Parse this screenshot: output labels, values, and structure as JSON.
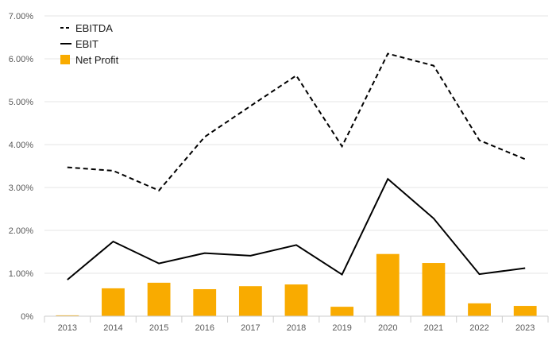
{
  "chart_data": {
    "type": "bar",
    "categories": [
      "2013",
      "2014",
      "2015",
      "2016",
      "2017",
      "2018",
      "2019",
      "2020",
      "2021",
      "2022",
      "2023"
    ],
    "ylim": [
      0,
      7
    ],
    "ytick_values": [
      0,
      1,
      2,
      3,
      4,
      5,
      6,
      7
    ],
    "ytick_labels": [
      "0%",
      "1.00%",
      "2.00%",
      "3.00%",
      "4.00%",
      "5.00%",
      "6.00%",
      "7.00%"
    ],
    "grid": true,
    "legend_position": "top-left",
    "series": [
      {
        "name": "EBITDA",
        "kind": "line",
        "style": "dashed",
        "color": "#000000",
        "values": [
          3.47,
          3.39,
          2.93,
          4.18,
          4.9,
          5.61,
          3.96,
          6.12,
          5.84,
          4.1,
          3.66
        ]
      },
      {
        "name": "EBIT",
        "kind": "line",
        "style": "solid",
        "color": "#000000",
        "values": [
          0.85,
          1.74,
          1.23,
          1.47,
          1.41,
          1.66,
          0.97,
          3.2,
          2.28,
          0.98,
          1.12
        ]
      },
      {
        "name": "Net Profit",
        "kind": "bar",
        "color": "#f9ab00",
        "values": [
          0.02,
          0.65,
          0.78,
          0.63,
          0.7,
          0.74,
          0.22,
          1.45,
          1.24,
          0.3,
          0.24
        ]
      }
    ]
  }
}
